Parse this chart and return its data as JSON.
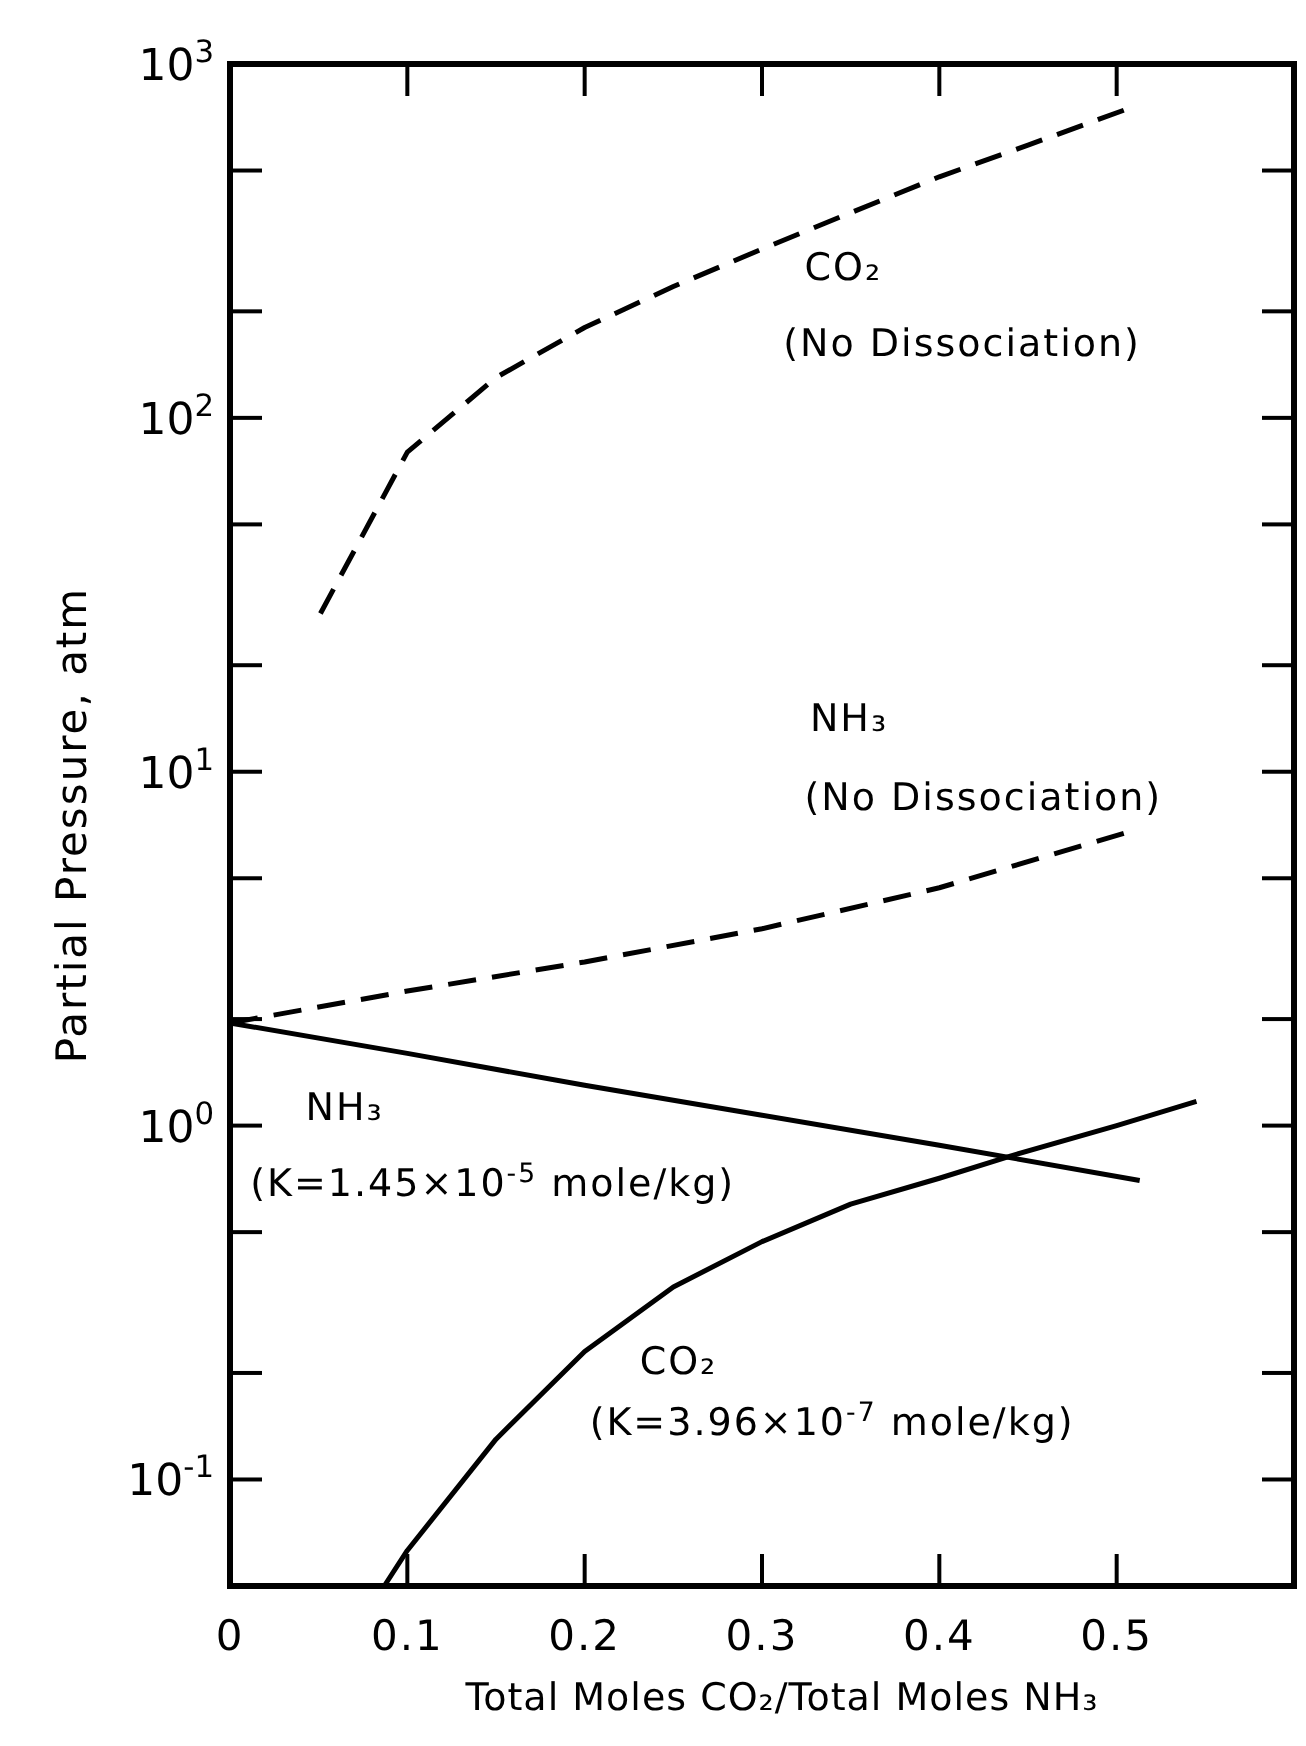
{
  "chart_data": {
    "type": "line",
    "xlabel": "Total Moles CO₂/Total Moles NH₃",
    "ylabel": "Partial Pressure, atm",
    "log": "y",
    "marker": "none",
    "grid": false,
    "xlim": [
      0,
      0.6
    ],
    "xticks": [
      0,
      0.1,
      0.2,
      0.3,
      0.4,
      0.5
    ],
    "ylim": [
      0.05,
      1000
    ],
    "yticks": [
      {
        "value": 0.1,
        "label": "10$^{-1}$"
      },
      {
        "value": 0.2,
        "label": null
      },
      {
        "value": 0.5,
        "label": null
      },
      {
        "value": 1,
        "label": "10$^{0}$"
      },
      {
        "value": 2,
        "label": null
      },
      {
        "value": 5,
        "label": null
      },
      {
        "value": 10,
        "label": "10$^{1}$"
      },
      {
        "value": 20,
        "label": null
      },
      {
        "value": 50,
        "label": null
      },
      {
        "value": 100,
        "label": "10$^{2}$"
      },
      {
        "value": 200,
        "label": null
      },
      {
        "value": 500,
        "label": null
      },
      {
        "value": 1000,
        "label": "10$^{3}$"
      }
    ],
    "series": [
      {
        "name": "CO₂ (No Dissociation)",
        "color": "#000000",
        "line_style": "dashed",
        "x": [
          0.051,
          0.1,
          0.15,
          0.2,
          0.25,
          0.3,
          0.35,
          0.4,
          0.45,
          0.504
        ],
        "values": [
          28,
          80,
          130,
          180,
          235,
          300,
          380,
          480,
          590,
          740
        ]
      },
      {
        "name": "NH₃ (No Dissociation)",
        "color": "#000000",
        "line_style": "dashed",
        "x": [
          0,
          0.1,
          0.2,
          0.3,
          0.4,
          0.504
        ],
        "values": [
          1.95,
          2.4,
          2.9,
          3.6,
          4.7,
          6.7
        ]
      },
      {
        "name": "NH₃ (K=1.45×10$^{-5}$ mole/kg)",
        "color": "#000000",
        "line_style": "solid",
        "x": [
          0,
          0.1,
          0.2,
          0.3,
          0.4,
          0.513
        ],
        "values": [
          1.95,
          1.6,
          1.3,
          1.07,
          0.88,
          0.7
        ]
      },
      {
        "name": "CO₂ (K=3.96×10$^{-7}$ mole/kg)",
        "color": "#000000",
        "line_style": "solid",
        "x": [
          0.087,
          0.1,
          0.15,
          0.2,
          0.25,
          0.3,
          0.35,
          0.4,
          0.44,
          0.5,
          0.545
        ],
        "values": [
          0.05,
          0.063,
          0.13,
          0.23,
          0.35,
          0.47,
          0.6,
          0.71,
          0.82,
          1.0,
          1.17
        ]
      }
    ]
  }
}
